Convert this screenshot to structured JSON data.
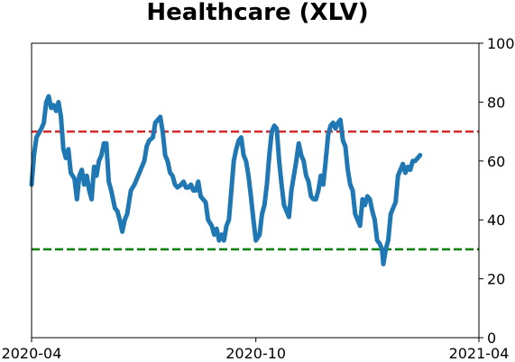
{
  "chart_data": {
    "type": "line",
    "title": "Healthcare (XLV)",
    "xlabel": "",
    "ylabel": "",
    "ylim": [
      0,
      100
    ],
    "xlim": [
      "2020-04-01",
      "2021-04-01"
    ],
    "x_ticks": [
      {
        "date": "2020-04-01",
        "label": "2020-04"
      },
      {
        "date": "2020-10-01",
        "label": "2020-10"
      },
      {
        "date": "2021-04-01",
        "label": "2021-04"
      }
    ],
    "y_ticks": [
      0,
      20,
      40,
      60,
      80,
      100
    ],
    "y_axis_side": "right",
    "grid": false,
    "reference_lines": [
      {
        "y": 70,
        "color": "#d62728",
        "style": "dashed"
      },
      {
        "y": 30,
        "color": "#008000",
        "style": "dashed"
      }
    ],
    "series": [
      {
        "color": "#1f77b4",
        "points": [
          [
            "2020-04-01",
            52
          ],
          [
            "2020-04-03",
            62
          ],
          [
            "2020-04-05",
            68
          ],
          [
            "2020-04-09",
            71
          ],
          [
            "2020-04-11",
            73
          ],
          [
            "2020-04-13",
            80
          ],
          [
            "2020-04-15",
            82
          ],
          [
            "2020-04-17",
            78
          ],
          [
            "2020-04-19",
            79
          ],
          [
            "2020-04-21",
            77
          ],
          [
            "2020-04-23",
            80
          ],
          [
            "2020-04-25",
            75
          ],
          [
            "2020-04-27",
            64
          ],
          [
            "2020-04-29",
            61
          ],
          [
            "2020-05-01",
            64
          ],
          [
            "2020-05-03",
            56
          ],
          [
            "2020-05-06",
            54
          ],
          [
            "2020-05-08",
            47
          ],
          [
            "2020-05-10",
            55
          ],
          [
            "2020-05-12",
            57
          ],
          [
            "2020-05-14",
            52
          ],
          [
            "2020-05-16",
            55
          ],
          [
            "2020-05-18",
            50
          ],
          [
            "2020-05-20",
            47
          ],
          [
            "2020-05-22",
            58
          ],
          [
            "2020-05-24",
            55
          ],
          [
            "2020-05-26",
            60
          ],
          [
            "2020-05-28",
            62
          ],
          [
            "2020-05-30",
            66
          ],
          [
            "2020-06-01",
            66
          ],
          [
            "2020-06-03",
            53
          ],
          [
            "2020-06-05",
            50
          ],
          [
            "2020-06-08",
            44
          ],
          [
            "2020-06-10",
            43
          ],
          [
            "2020-06-12",
            40
          ],
          [
            "2020-06-14",
            36
          ],
          [
            "2020-06-16",
            40
          ],
          [
            "2020-06-18",
            42
          ],
          [
            "2020-06-21",
            50
          ],
          [
            "2020-06-24",
            52
          ],
          [
            "2020-06-27",
            55
          ],
          [
            "2020-06-29",
            57
          ],
          [
            "2020-07-02",
            60
          ],
          [
            "2020-07-04",
            65
          ],
          [
            "2020-07-06",
            67
          ],
          [
            "2020-07-09",
            68
          ],
          [
            "2020-07-11",
            73
          ],
          [
            "2020-07-13",
            74
          ],
          [
            "2020-07-15",
            75
          ],
          [
            "2020-07-17",
            70
          ],
          [
            "2020-07-19",
            62
          ],
          [
            "2020-07-21",
            60
          ],
          [
            "2020-07-23",
            56
          ],
          [
            "2020-07-25",
            55
          ],
          [
            "2020-07-27",
            52
          ],
          [
            "2020-07-29",
            51
          ],
          [
            "2020-08-01",
            52
          ],
          [
            "2020-08-03",
            53
          ],
          [
            "2020-08-05",
            51
          ],
          [
            "2020-08-07",
            51
          ],
          [
            "2020-08-09",
            52
          ],
          [
            "2020-08-11",
            50
          ],
          [
            "2020-08-13",
            50
          ],
          [
            "2020-08-15",
            53
          ],
          [
            "2020-08-17",
            48
          ],
          [
            "2020-08-19",
            47
          ],
          [
            "2020-08-21",
            46
          ],
          [
            "2020-08-23",
            40
          ],
          [
            "2020-08-26",
            38
          ],
          [
            "2020-08-28",
            35
          ],
          [
            "2020-08-30",
            37
          ],
          [
            "2020-09-01",
            33
          ],
          [
            "2020-09-03",
            35
          ],
          [
            "2020-09-05",
            33
          ],
          [
            "2020-09-07",
            38
          ],
          [
            "2020-09-09",
            40
          ],
          [
            "2020-09-11",
            50
          ],
          [
            "2020-09-13",
            60
          ],
          [
            "2020-09-15",
            64
          ],
          [
            "2020-09-17",
            67
          ],
          [
            "2020-09-19",
            68
          ],
          [
            "2020-09-21",
            62
          ],
          [
            "2020-09-23",
            60
          ],
          [
            "2020-09-25",
            55
          ],
          [
            "2020-09-27",
            48
          ],
          [
            "2020-09-29",
            40
          ],
          [
            "2020-10-01",
            33
          ],
          [
            "2020-10-04",
            35
          ],
          [
            "2020-10-06",
            42
          ],
          [
            "2020-10-08",
            45
          ],
          [
            "2020-10-10",
            52
          ],
          [
            "2020-10-12",
            62
          ],
          [
            "2020-10-14",
            70
          ],
          [
            "2020-10-16",
            72
          ],
          [
            "2020-10-18",
            71
          ],
          [
            "2020-10-20",
            60
          ],
          [
            "2020-10-22",
            52
          ],
          [
            "2020-10-24",
            45
          ],
          [
            "2020-10-26",
            43
          ],
          [
            "2020-10-28",
            41
          ],
          [
            "2020-10-30",
            50
          ],
          [
            "2020-11-01",
            55
          ],
          [
            "2020-11-03",
            60
          ],
          [
            "2020-11-05",
            66
          ],
          [
            "2020-11-07",
            62
          ],
          [
            "2020-11-09",
            60
          ],
          [
            "2020-11-11",
            55
          ],
          [
            "2020-11-13",
            53
          ],
          [
            "2020-11-15",
            48
          ],
          [
            "2020-11-17",
            47
          ],
          [
            "2020-11-19",
            47
          ],
          [
            "2020-11-21",
            50
          ],
          [
            "2020-11-23",
            55
          ],
          [
            "2020-11-25",
            52
          ],
          [
            "2020-11-27",
            60
          ],
          [
            "2020-11-29",
            69
          ],
          [
            "2020-12-01",
            72
          ],
          [
            "2020-12-03",
            73
          ],
          [
            "2020-12-05",
            71
          ],
          [
            "2020-12-07",
            73
          ],
          [
            "2020-12-09",
            74
          ],
          [
            "2020-12-11",
            67
          ],
          [
            "2020-12-13",
            65
          ],
          [
            "2020-12-15",
            57
          ],
          [
            "2020-12-17",
            52
          ],
          [
            "2020-12-19",
            50
          ],
          [
            "2020-12-21",
            42
          ],
          [
            "2020-12-23",
            40
          ],
          [
            "2020-12-25",
            38
          ],
          [
            "2020-12-27",
            47
          ],
          [
            "2020-12-29",
            45
          ],
          [
            "2020-12-31",
            48
          ],
          [
            "2021-01-02",
            47
          ],
          [
            "2021-01-04",
            43
          ],
          [
            "2021-01-06",
            40
          ],
          [
            "2021-01-08",
            33
          ],
          [
            "2021-01-10",
            32
          ],
          [
            "2021-01-12",
            30
          ],
          [
            "2021-01-13",
            25
          ],
          [
            "2021-01-15",
            30
          ],
          [
            "2021-01-17",
            33
          ],
          [
            "2021-01-19",
            42
          ],
          [
            "2021-01-21",
            44
          ],
          [
            "2021-01-23",
            46
          ],
          [
            "2021-01-25",
            55
          ],
          [
            "2021-01-27",
            57
          ],
          [
            "2021-01-29",
            59
          ],
          [
            "2021-01-31",
            56
          ],
          [
            "2021-02-02",
            58
          ],
          [
            "2021-02-04",
            57
          ],
          [
            "2021-02-06",
            60
          ],
          [
            "2021-02-08",
            60
          ],
          [
            "2021-02-10",
            61
          ],
          [
            "2021-02-12",
            62
          ]
        ]
      }
    ]
  }
}
